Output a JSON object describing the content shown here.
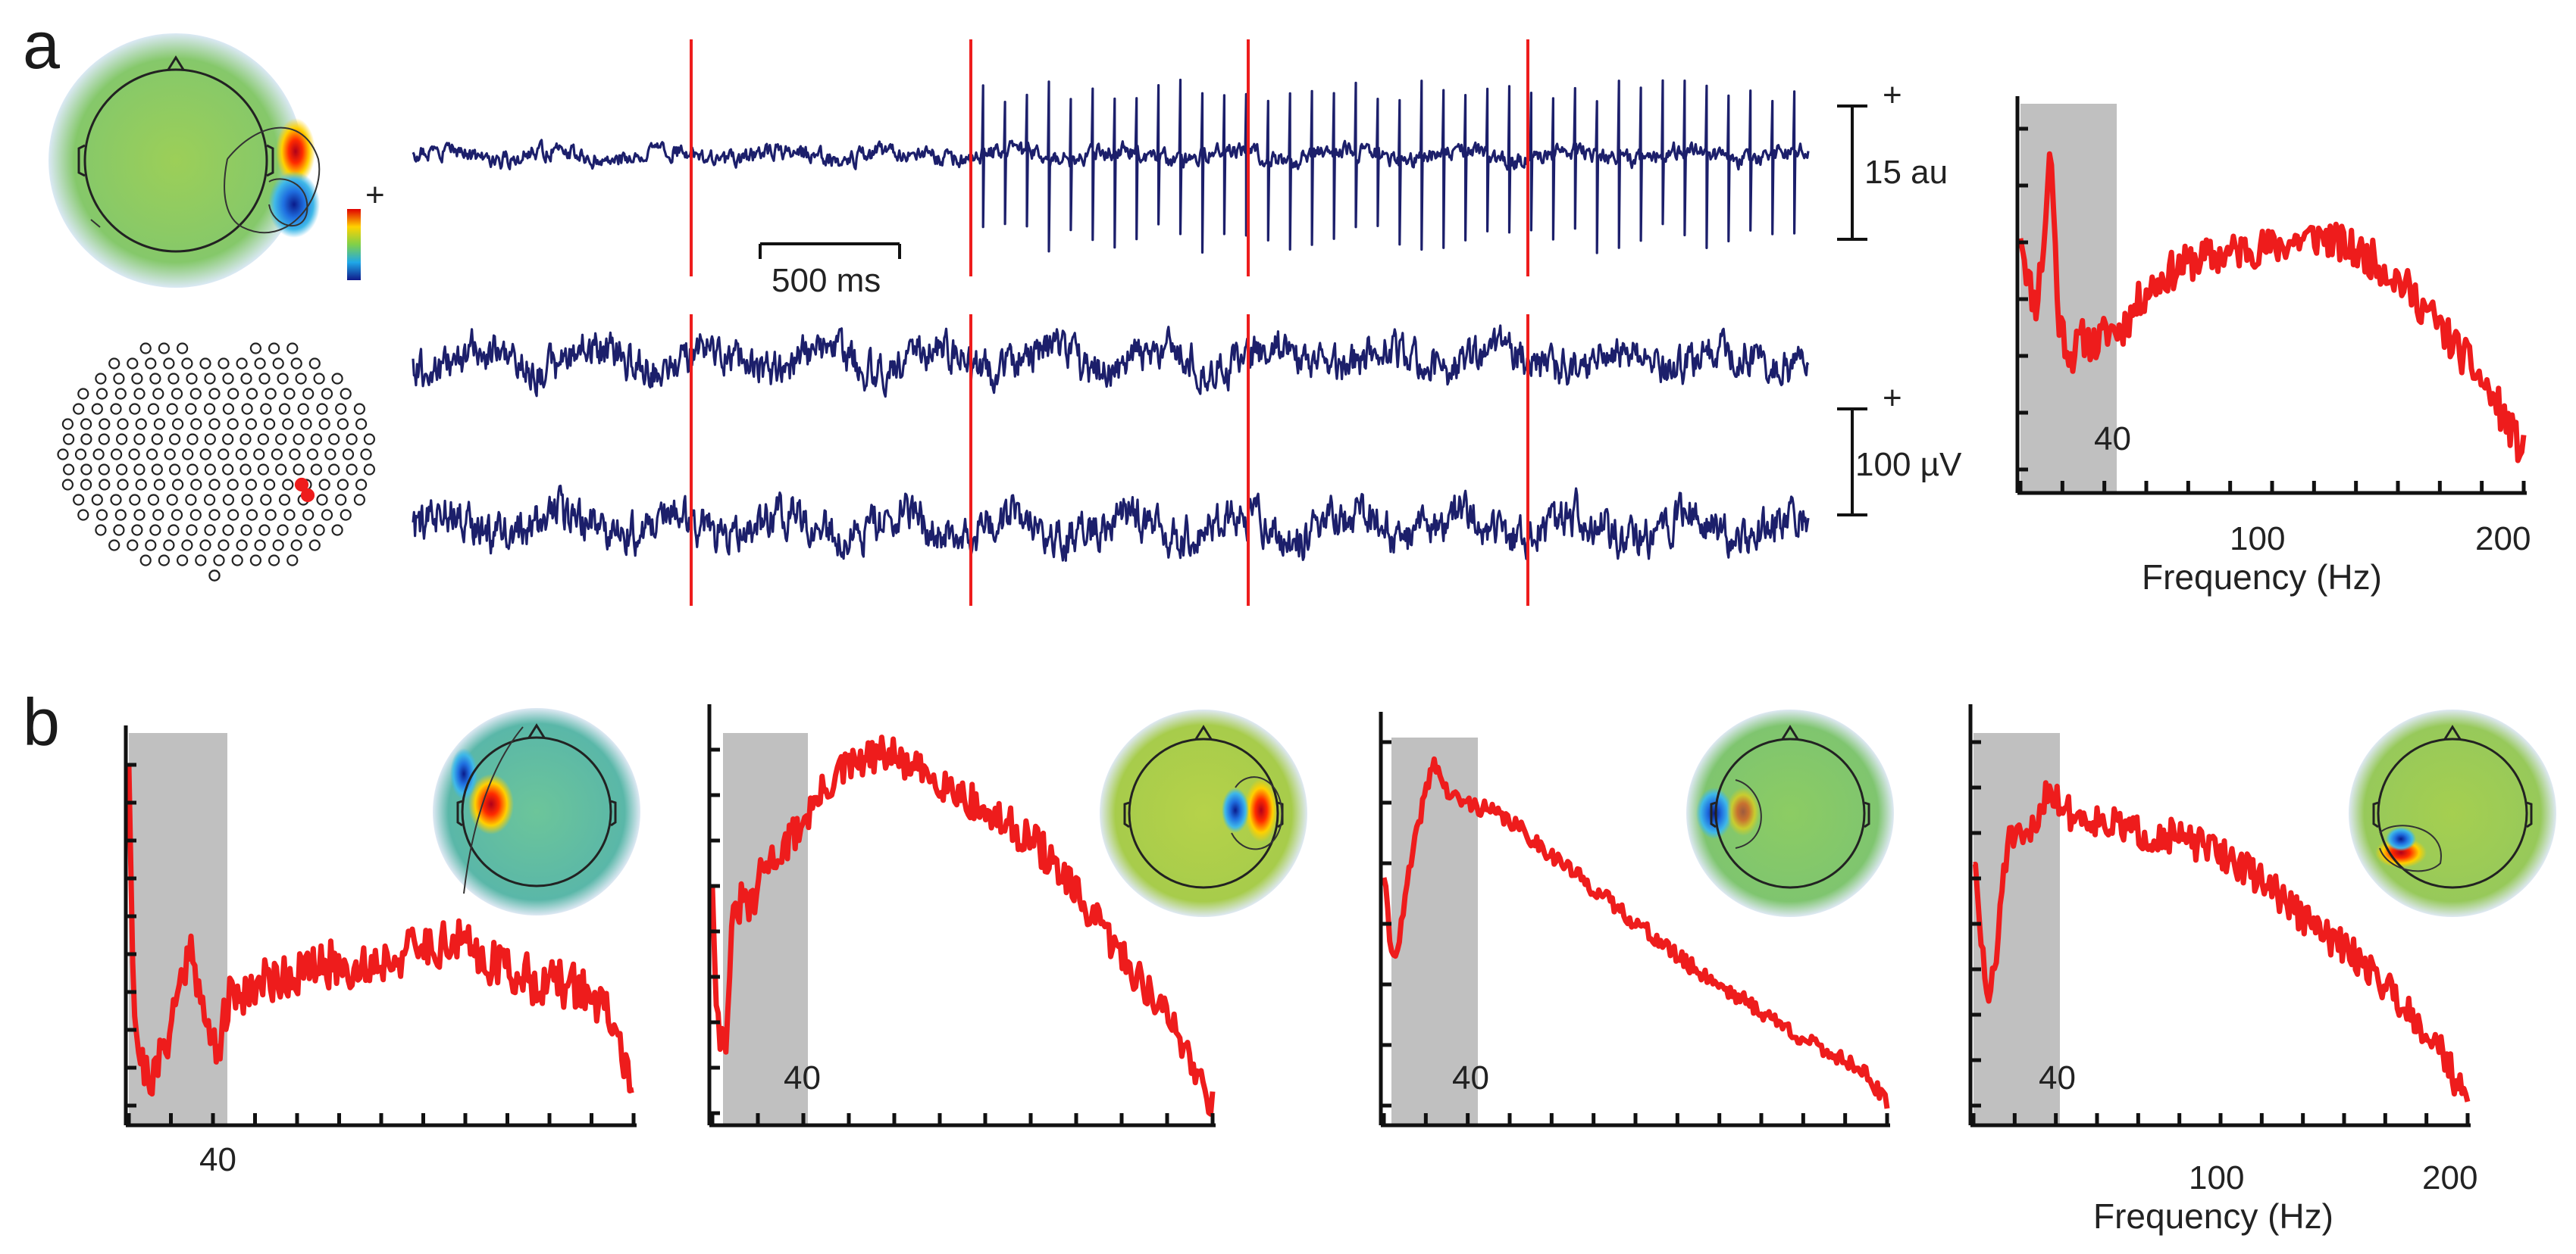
{
  "panel_a": {
    "letter": "a",
    "component_scale": {
      "plus": "+",
      "label": "15 au"
    },
    "sensor_scale": {
      "plus": "+",
      "label": "100 µV"
    },
    "time_scale": {
      "label": "500 ms"
    },
    "colorbar_plus": "+",
    "spectrum": {
      "tick_40": "40",
      "tick_100": "100",
      "tick_200": "200",
      "xlabel": "Frequency (Hz)"
    }
  },
  "panel_b": {
    "letter": "b",
    "plots": [
      {
        "tick_40": "40"
      },
      {
        "tick_40": "40"
      },
      {
        "tick_40": "40"
      },
      {
        "tick_40": "40",
        "tick_100": "100",
        "tick_200": "200",
        "xlabel": "Frequency (Hz)"
      }
    ]
  },
  "colors": {
    "trace": "#1c1f6b",
    "spectrum": "#ee1c1c",
    "marker": "#ee1c1c",
    "shade": "#c0c0c0",
    "topo_background": "#8ccc5e"
  },
  "chart_data": [
    {
      "type": "line",
      "id": "a-spectrum",
      "xlabel": "Frequency (Hz)",
      "ylabel": "",
      "xlim": [
        0,
        200
      ],
      "x_ticks": [
        40,
        100,
        200
      ],
      "shaded_band": [
        0,
        40
      ],
      "series": [
        {
          "x": [
            0,
            3,
            6,
            9,
            12,
            15,
            20,
            25,
            30,
            35,
            40,
            50,
            60,
            70,
            80,
            90,
            100,
            110,
            120,
            130,
            140,
            150,
            160,
            170,
            180,
            190,
            200
          ],
          "y": [
            0.68,
            0.55,
            0.48,
            0.62,
            0.9,
            0.45,
            0.35,
            0.4,
            0.38,
            0.42,
            0.42,
            0.52,
            0.57,
            0.6,
            0.61,
            0.63,
            0.63,
            0.65,
            0.66,
            0.63,
            0.6,
            0.55,
            0.48,
            0.4,
            0.32,
            0.22,
            0.1
          ]
        }
      ]
    },
    {
      "type": "line",
      "id": "b-spectrum-1",
      "xlim": [
        0,
        200
      ],
      "x_ticks": [
        40
      ],
      "shaded_band": [
        0,
        40
      ],
      "series": [
        {
          "x": [
            0,
            2,
            5,
            10,
            15,
            20,
            25,
            30,
            35,
            40,
            50,
            60,
            70,
            80,
            90,
            100,
            110,
            120,
            130,
            140,
            150,
            160,
            170,
            180,
            190,
            200
          ],
          "y": [
            0.95,
            0.3,
            0.15,
            0.12,
            0.22,
            0.35,
            0.48,
            0.25,
            0.2,
            0.32,
            0.36,
            0.38,
            0.39,
            0.41,
            0.4,
            0.42,
            0.44,
            0.46,
            0.47,
            0.43,
            0.4,
            0.37,
            0.36,
            0.35,
            0.28,
            0.1
          ]
        }
      ]
    },
    {
      "type": "line",
      "id": "b-spectrum-2",
      "xlim": [
        0,
        200
      ],
      "x_ticks": [
        40
      ],
      "shaded_band": [
        0,
        40
      ],
      "series": [
        {
          "x": [
            0,
            2,
            5,
            8,
            12,
            16,
            20,
            25,
            30,
            40,
            50,
            60,
            70,
            80,
            90,
            100,
            110,
            120,
            130,
            140,
            150,
            160,
            170,
            180,
            190,
            200
          ],
          "y": [
            0.6,
            0.25,
            0.18,
            0.48,
            0.55,
            0.52,
            0.62,
            0.65,
            0.68,
            0.77,
            0.85,
            0.88,
            0.9,
            0.86,
            0.84,
            0.8,
            0.75,
            0.72,
            0.68,
            0.6,
            0.52,
            0.44,
            0.36,
            0.28,
            0.18,
            0.05
          ]
        }
      ]
    },
    {
      "type": "line",
      "id": "b-spectrum-3",
      "xlim": [
        0,
        200
      ],
      "x_ticks": [
        40
      ],
      "shaded_band": [
        0,
        40
      ],
      "series": [
        {
          "x": [
            0,
            3,
            6,
            10,
            15,
            20,
            25,
            30,
            40,
            50,
            60,
            70,
            80,
            90,
            100,
            110,
            120,
            130,
            140,
            150,
            160,
            170,
            180,
            190,
            200
          ],
          "y": [
            0.62,
            0.42,
            0.45,
            0.62,
            0.78,
            0.9,
            0.82,
            0.8,
            0.78,
            0.75,
            0.7,
            0.65,
            0.6,
            0.55,
            0.5,
            0.45,
            0.4,
            0.36,
            0.32,
            0.28,
            0.24,
            0.2,
            0.17,
            0.14,
            0.05
          ]
        }
      ]
    },
    {
      "type": "line",
      "id": "b-spectrum-4",
      "xlabel": "Frequency (Hz)",
      "xlim": [
        0,
        200
      ],
      "x_ticks": [
        40,
        100,
        200
      ],
      "shaded_band": [
        0,
        40
      ],
      "series": [
        {
          "x": [
            0,
            3,
            6,
            9,
            12,
            15,
            20,
            25,
            30,
            35,
            40,
            50,
            60,
            70,
            80,
            90,
            100,
            110,
            120,
            130,
            140,
            150,
            160,
            170,
            180,
            190,
            200
          ],
          "y": [
            0.65,
            0.45,
            0.3,
            0.38,
            0.62,
            0.7,
            0.68,
            0.72,
            0.82,
            0.78,
            0.75,
            0.74,
            0.72,
            0.7,
            0.7,
            0.68,
            0.66,
            0.62,
            0.58,
            0.52,
            0.47,
            0.43,
            0.38,
            0.32,
            0.25,
            0.18,
            0.04
          ]
        }
      ]
    }
  ]
}
